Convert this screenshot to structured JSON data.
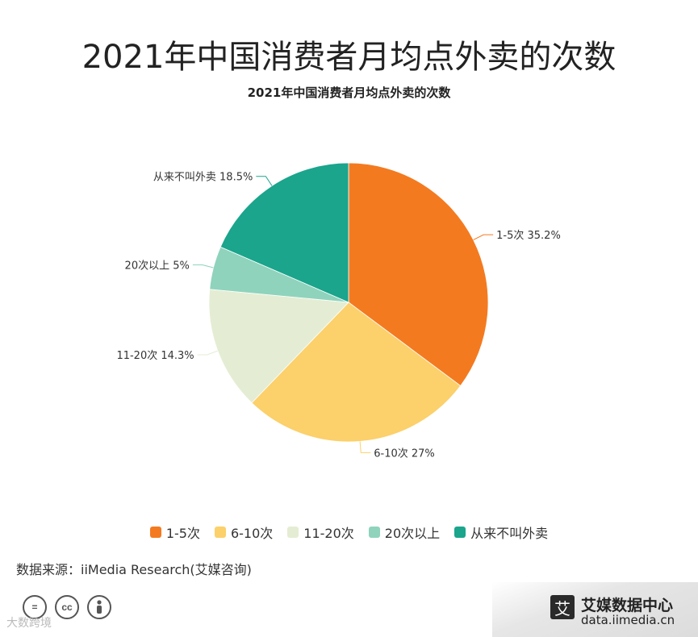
{
  "title": "2021年中国消费者月均点外卖的次数",
  "subtitle": "2021年中国消费者月均点外卖的次数",
  "source": "数据来源：iiMedia Research(艾媒咨询)",
  "watermark": "大数跨境",
  "brand": {
    "name": "艾媒数据中心",
    "url": "data.iimedia.cn",
    "logo_char": "艾"
  },
  "license_icons": [
    "equals-icon",
    "cc-icon",
    "person-icon"
  ],
  "chart_data": {
    "type": "pie",
    "title": "2021年中国消费者月均点外卖的次数",
    "categories": [
      "1-5次",
      "6-10次",
      "11-20次",
      "20次以上",
      "从来不叫外卖"
    ],
    "values": [
      35.2,
      27,
      14.3,
      5,
      18.5
    ],
    "unit": "%",
    "slice_labels": [
      "1-5次 35.2%",
      "6-10次 27%",
      "11-20次 14.3%",
      "20次以上 5%",
      "从来不叫外卖 18.5%"
    ],
    "colors": [
      "#f47a20",
      "#fcd06a",
      "#e4edd3",
      "#8fd3bd",
      "#1aa58c"
    ],
    "legend_position": "bottom",
    "start_angle": "12 o'clock",
    "direction": "clockwise"
  }
}
